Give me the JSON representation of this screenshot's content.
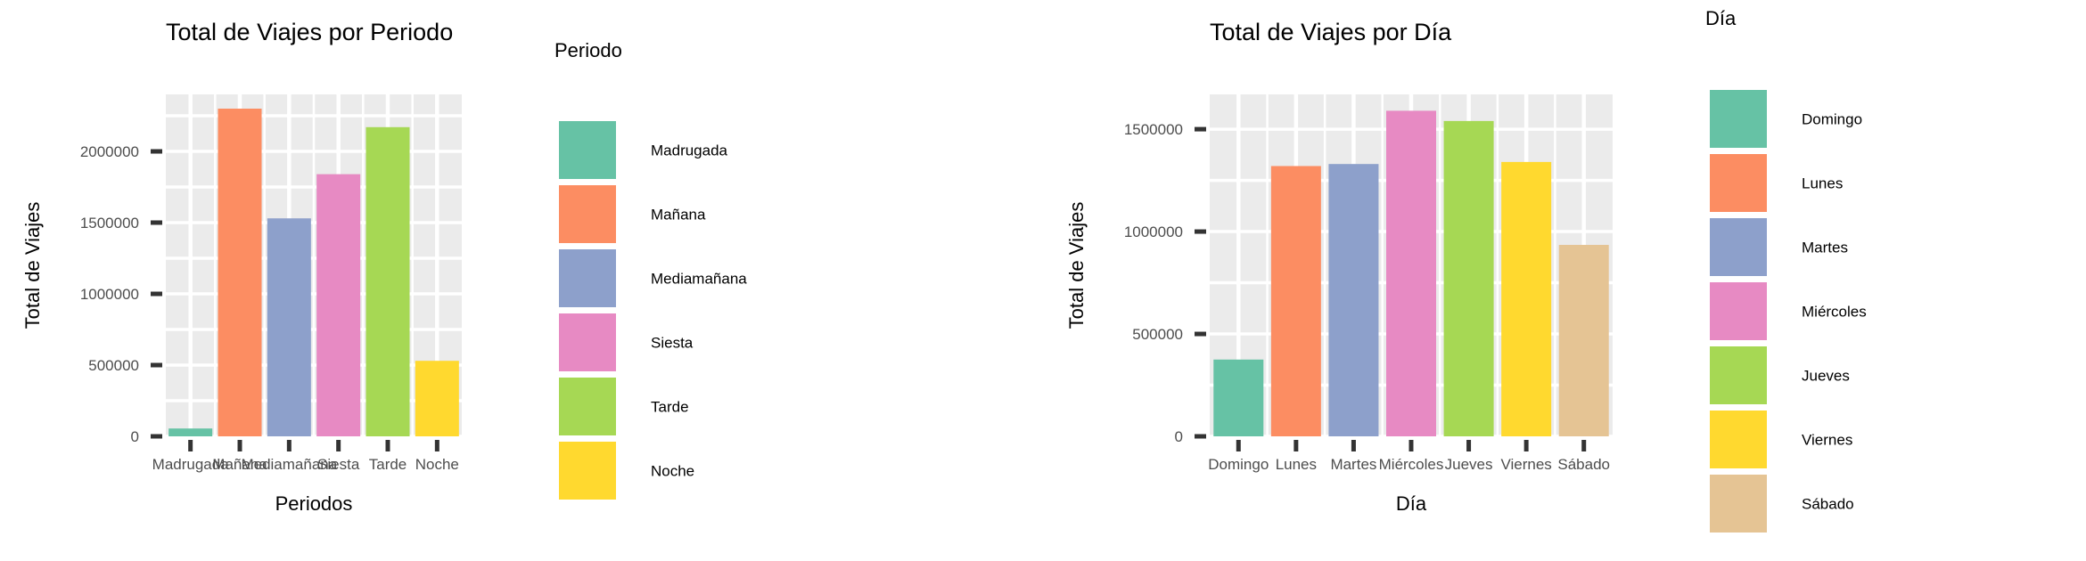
{
  "chart_data": [
    {
      "type": "bar",
      "title": "Total de Viajes por Periodo",
      "xlabel": "Periodos",
      "ylabel": "Total de Viajes",
      "categories": [
        "Madrugada",
        "Mañana",
        "Mediamañana",
        "Siesta",
        "Tarde",
        "Noche"
      ],
      "values": [
        55000,
        2300000,
        1530000,
        1840000,
        2170000,
        530000
      ],
      "colors": [
        "#66c2a5",
        "#fc8d62",
        "#8da0cb",
        "#e78ac3",
        "#a6d854",
        "#ffd92f"
      ],
      "ylim": [
        0,
        2400000
      ],
      "yticks": [
        0,
        500000,
        1000000,
        1500000,
        2000000
      ],
      "ytick_labels": [
        "0",
        "500000",
        "1000000",
        "1500000",
        "2000000"
      ],
      "grid": true,
      "legend": {
        "title": "Periodo",
        "position": "right",
        "entries": [
          "Madrugada",
          "Mañana",
          "Mediamañana",
          "Siesta",
          "Tarde",
          "Noche"
        ]
      }
    },
    {
      "type": "bar",
      "title": "Total de Viajes por Día",
      "xlabel": "Día",
      "ylabel": "Total de Viajes",
      "categories": [
        "Domingo",
        "Lunes",
        "Martes",
        "Miércoles",
        "Jueves",
        "Viernes",
        "Sábado"
      ],
      "values": [
        375000,
        1320000,
        1330000,
        1590000,
        1540000,
        1340000,
        935000
      ],
      "colors": [
        "#66c2a5",
        "#fc8d62",
        "#8da0cb",
        "#e78ac3",
        "#a6d854",
        "#ffd92f",
        "#e5c494"
      ],
      "ylim": [
        0,
        1670000
      ],
      "yticks": [
        0,
        500000,
        1000000,
        1500000
      ],
      "ytick_labels": [
        "0",
        "500000",
        "1000000",
        "1500000"
      ],
      "grid": true,
      "legend": {
        "title": "Día",
        "position": "right",
        "entries": [
          "Domingo",
          "Lunes",
          "Martes",
          "Miércoles",
          "Jueves",
          "Viernes",
          "Sábado"
        ]
      }
    }
  ]
}
